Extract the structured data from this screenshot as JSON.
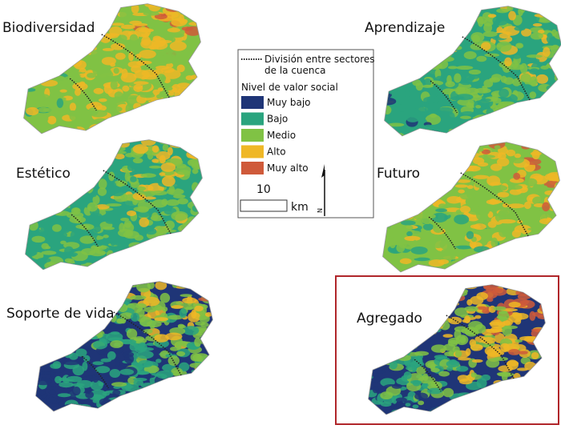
{
  "panels": [
    {
      "label": "Biodiversidad"
    },
    {
      "label": "Aprendizaje"
    },
    {
      "label": "Estético"
    },
    {
      "label": "Futuro"
    },
    {
      "label": "Soporte de vida"
    },
    {
      "label": "Agregado"
    }
  ],
  "legend": {
    "division": [
      "División entre sectores",
      "de la cuenca"
    ],
    "title": "Nivel de valor social",
    "classes": [
      {
        "name": "Muy bajo",
        "color": "#1f3577"
      },
      {
        "name": "Bajo",
        "color": "#2aa47e"
      },
      {
        "name": "Medio",
        "color": "#80c244"
      },
      {
        "name": "Alto",
        "color": "#efb726"
      },
      {
        "name": "Muy alto",
        "color": "#cf5a3a"
      }
    ],
    "scale": {
      "value": "10",
      "unit": "km"
    },
    "north": "N"
  }
}
